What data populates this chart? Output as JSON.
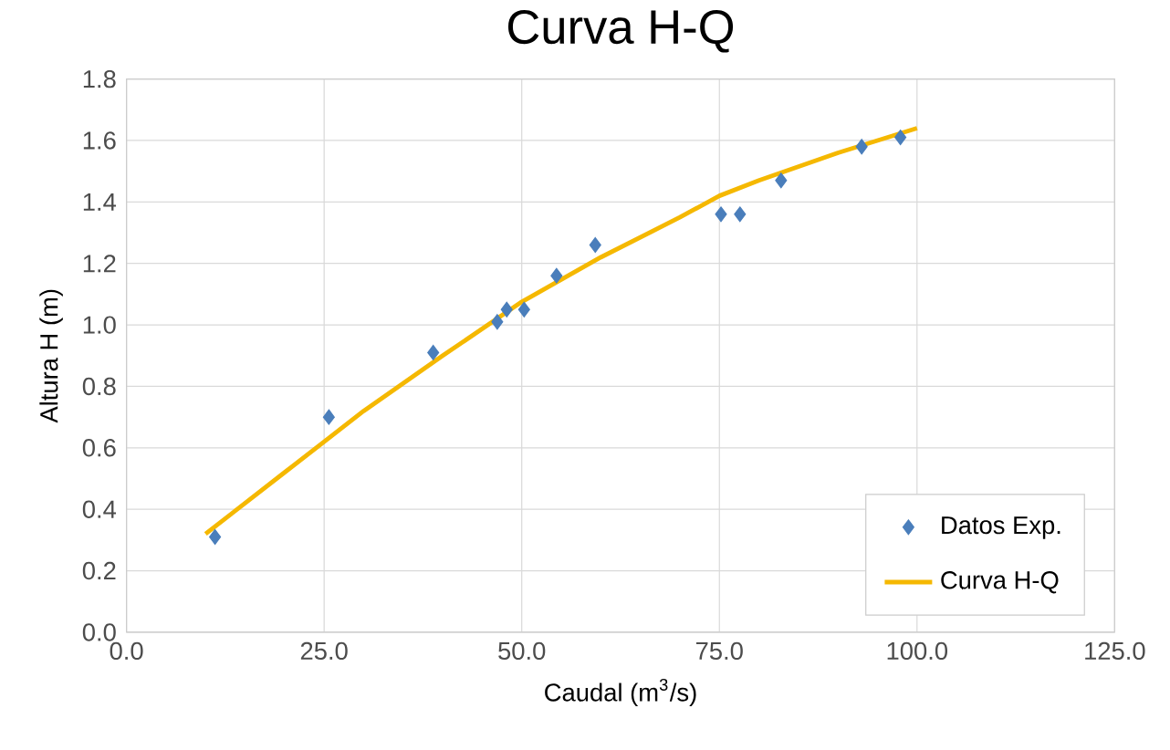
{
  "chart_data": {
    "type": "scatter",
    "title": "Curva H-Q",
    "xlabel": "Caudal (m$^{3}$/s)",
    "ylabel": "Altura H (m)",
    "xlim": [
      0,
      125
    ],
    "xticks": [
      {
        "value": 0,
        "label": "0.0"
      },
      {
        "value": 25,
        "label": "25.0"
      },
      {
        "value": 50,
        "label": "50.0"
      },
      {
        "value": 75,
        "label": "75.0"
      },
      {
        "value": 100,
        "label": "100.0"
      },
      {
        "value": 125,
        "label": "125.0"
      }
    ],
    "ylim": [
      0,
      1.8
    ],
    "yticks": [
      {
        "value": 0,
        "label": "0.0"
      },
      {
        "value": 0.2,
        "label": "0.2"
      },
      {
        "value": 0.4,
        "label": "0.4"
      },
      {
        "value": 0.6,
        "label": "0.6"
      },
      {
        "value": 0.8,
        "label": "0.8"
      },
      {
        "value": 1.0,
        "label": "1.0"
      },
      {
        "value": 1.2,
        "label": "1.2"
      },
      {
        "value": 1.4,
        "label": "1.4"
      },
      {
        "value": 1.6,
        "label": "1.6"
      },
      {
        "value": 1.8,
        "label": "1.8"
      }
    ],
    "grid": true,
    "legend": "bottom right",
    "series": [
      {
        "name": "Datos Exp.",
        "marker": "diamond",
        "color": "#4a7ebb",
        "x": [
          11.2,
          25.6,
          38.8,
          46.9,
          48.1,
          50.3,
          54.4,
          59.3,
          75.2,
          77.6,
          82.8,
          93.0,
          97.9
        ],
        "values": [
          0.31,
          0.7,
          0.91,
          1.01,
          1.05,
          1.05,
          1.16,
          1.26,
          1.36,
          1.36,
          1.47,
          1.58,
          1.61
        ]
      },
      {
        "name": "Curva H-Q",
        "type": "line",
        "marker": "none",
        "line_style": "solid",
        "color": "#f5b800",
        "x": [
          10,
          20,
          25,
          30,
          40,
          50,
          60,
          70,
          75,
          80,
          90,
          100
        ],
        "values": [
          0.32,
          0.52,
          0.62,
          0.72,
          0.9,
          1.075,
          1.22,
          1.35,
          1.42,
          1.47,
          1.56,
          1.64
        ]
      }
    ]
  }
}
